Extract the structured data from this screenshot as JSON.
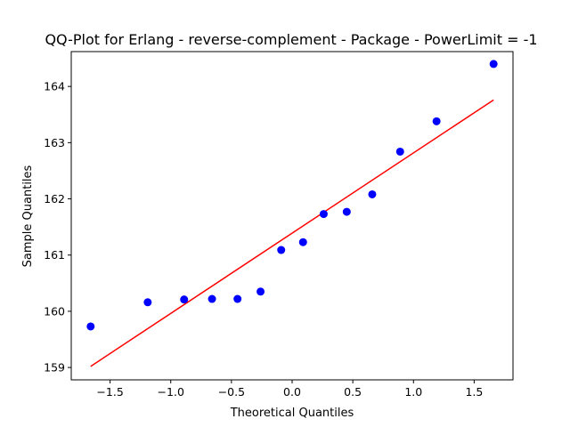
{
  "chart_data": {
    "type": "scatter",
    "title": "QQ-Plot for Erlang - reverse-complement - Package - PowerLimit = -1",
    "xlabel": "Theoretical Quantiles",
    "ylabel": "Sample Quantiles",
    "xlim": [
      -1.82,
      1.82
    ],
    "ylim": [
      158.78,
      164.62
    ],
    "x_ticks": [
      -1.5,
      -1.0,
      -0.5,
      0.0,
      0.5,
      1.0,
      1.5
    ],
    "x_tick_labels": [
      "−1.5",
      "−1.0",
      "−0.5",
      "0.0",
      "0.5",
      "1.0",
      "1.5"
    ],
    "y_ticks": [
      159,
      160,
      161,
      162,
      163,
      164
    ],
    "y_tick_labels": [
      "159",
      "160",
      "161",
      "162",
      "163",
      "164"
    ],
    "grid": false,
    "points": {
      "color": "#0000ff",
      "x": [
        -1.66,
        -1.19,
        -0.89,
        -0.66,
        -0.45,
        -0.26,
        -0.09,
        0.09,
        0.26,
        0.45,
        0.66,
        0.89,
        1.19,
        1.66
      ],
      "y": [
        159.73,
        160.16,
        160.21,
        160.22,
        160.22,
        160.35,
        161.09,
        161.23,
        161.73,
        161.77,
        162.08,
        162.84,
        163.38,
        164.4
      ]
    },
    "fit_line": {
      "color": "#ff0000",
      "x": [
        -1.66,
        1.66
      ],
      "y": [
        159.02,
        163.76
      ]
    }
  }
}
